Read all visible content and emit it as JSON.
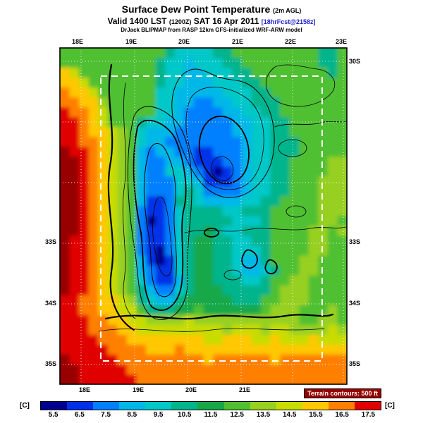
{
  "header": {
    "title": "Surface Dew Point Temperature",
    "title_small": "(2m AGL)",
    "valid_prefix": "Valid 1400 LST",
    "valid_small": "(1200Z)",
    "valid_date": "SAT 16 Apr 2011",
    "fcst_tag": "[18hrFcst@2158z]",
    "model_line": "DrJack BLIPMAP from RASP 12km GFS-initialized WRF-ARW model"
  },
  "map": {
    "axis_top": [
      "18E",
      "19E",
      "20E",
      "21E",
      "22E",
      "23E"
    ],
    "axis_bottom": [
      "18E",
      "19E",
      "20E",
      "21E"
    ],
    "axis_left": [
      "33S",
      "34S",
      "35S"
    ],
    "axis_right": [
      "30S",
      "33S",
      "34S",
      "35S"
    ],
    "terrain_label": "Terrain contours: 500 ft"
  },
  "colorbar": {
    "unit_left": "[C]",
    "unit_right": "[C]",
    "labels": [
      "5.5",
      "6.5",
      "7.5",
      "8.5",
      "9.5",
      "10.5",
      "11.5",
      "12.5",
      "13.5",
      "14.5",
      "15.5",
      "16.5",
      "17.5"
    ]
  },
  "colors": {
    "fcst_tag": "#2020D0",
    "terrain_label_bg": "#980000",
    "terrain_label_fg": "#FFFFFF"
  },
  "chart_data": {
    "type": "heatmap",
    "title": "Surface Dew Point Temperature (2m AGL)",
    "valid": "Valid 1400 LST (1200Z) SAT 16 Apr 2011 [18hrFcst@2158z]",
    "units": "C",
    "legend_position": "bottom",
    "colorscale": {
      "tick_values": [
        5.5,
        6.5,
        7.5,
        8.5,
        9.5,
        10.5,
        11.5,
        12.5,
        13.5,
        14.5,
        15.5,
        16.5,
        17.5
      ],
      "colors": [
        "#000090",
        "#0030E8",
        "#0080FF",
        "#00B8E8",
        "#00C8C8",
        "#00B48C",
        "#18A848",
        "#50C030",
        "#98D020",
        "#C8DC00",
        "#FFC800",
        "#FF8000",
        "#E00000"
      ],
      "over_color": "#980000"
    },
    "grid": {
      "cols": 30,
      "rows": 34,
      "note": "Each hex char is a dew-point band index; value = 5.5 + index (deg C), 'd' = above top of scale.",
      "rows_data": [
        "777777777775444455777777777557",
        "777777777754434445577777777557",
        "a97777777754433444557777777757",
        "aa9777777754433344455777777777",
        "baa977777744333334445577777777",
        "bbaa87777744332233445557777777",
        "cbba97777744322223344557777777",
        "ccba97775443322222334455777777",
        "ccbaa9874333222222334455777777",
        "ccbba9874332222222234455577777",
        "dccba9873233221122234455577777",
        "ddcba9873223321112234455777788",
        "ddcba9873224432101234455777788",
        "ddcba9873222443111234455777888",
        "ddcba9873222454222234455777888",
        "ddcba9873112554333344557777888",
        "ddcba9872112455554455577777888",
        "ddcba9872012455555444577777887",
        "ddcba9872112455654455577778878",
        "dccba9872112456655445577778877",
        "dccba9872102456655444577778877",
        "dccba9873101456655433577788777",
        "dccba9873211456655433457788777",
        "dccba9874211356655544577887777",
        "dccba9875322456665555578887777",
        "ccbbaa985433566666555778887777",
        "ccbbaa997555667666666788877787",
        "cccbbaa99888898888888888877887",
        "cccbbbaa9999999998999899888898",
        "ccccbbbaaaaaaaa99aaa99a999a999",
        "cccccbbbbaaabaaaaaaaaaaaaaaaaa",
        "dcccccbbbbbbbbbabbbbbbabbbbbbb",
        "ddcccccbbbbbbbbbbbbbbbbbbbbbbb",
        "ddccccccbbbbbbbbbbbbbbbbbbbbbb"
      ]
    }
  }
}
